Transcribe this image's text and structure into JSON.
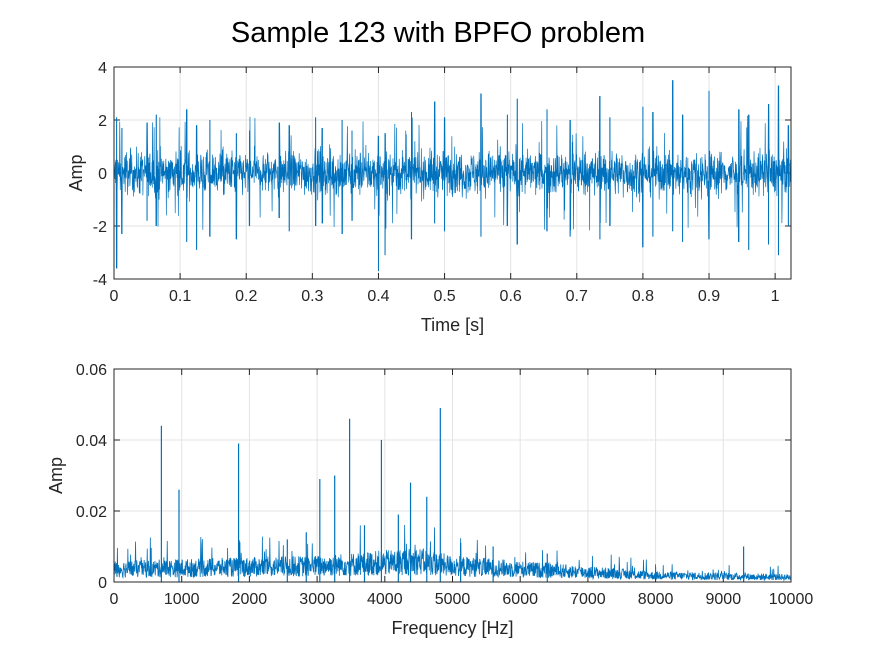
{
  "figure": {
    "title": "Sample 123 with BPFO problem"
  },
  "colors": {
    "series": "#0072BD",
    "grid": "#e3e3e3",
    "axes": "#262626",
    "background": "#ffffff"
  },
  "chart_data": [
    {
      "type": "line",
      "title": "Sample 123 with BPFO problem",
      "xlabel": "Time [s]",
      "ylabel": "Amp",
      "xlim": [
        0,
        1.024
      ],
      "ylim": [
        -4,
        4
      ],
      "xticks": [
        0,
        0.1,
        0.2,
        0.3,
        0.4,
        0.5,
        0.6,
        0.7,
        0.8,
        0.9,
        1
      ],
      "xtick_labels": [
        "0",
        "0.1",
        "0.2",
        "0.3",
        "0.4",
        "0.5",
        "0.6",
        "0.7",
        "0.8",
        "0.9",
        "1"
      ],
      "yticks": [
        -4,
        -2,
        0,
        2,
        4
      ],
      "ytick_labels": [
        "-4",
        "-2",
        "0",
        "2",
        "4"
      ],
      "grid": true,
      "series": [
        {
          "values_description_note": null,
          "noise_band": 0.75,
          "bursts": [
            [
              0.004,
              2.1,
              -3.6
            ],
            [
              0.012,
              1.7,
              -2.3
            ],
            [
              0.05,
              1.9,
              -1.8
            ],
            [
              0.064,
              2.2,
              -2.0
            ],
            [
              0.11,
              2.4,
              -2.6
            ],
            [
              0.125,
              1.8,
              -2.9
            ],
            [
              0.145,
              2.0,
              -2.4
            ],
            [
              0.185,
              1.5,
              -2.5
            ],
            [
              0.205,
              1.6,
              -2.0
            ],
            [
              0.25,
              1.9,
              -1.7
            ],
            [
              0.265,
              1.8,
              -2.2
            ],
            [
              0.305,
              2.1,
              -2.0
            ],
            [
              0.315,
              1.7,
              -1.9
            ],
            [
              0.345,
              2.0,
              -2.3
            ],
            [
              0.36,
              1.6,
              -1.8
            ],
            [
              0.4,
              1.4,
              -3.7
            ],
            [
              0.41,
              1.5,
              -3.1
            ],
            [
              0.45,
              2.3,
              -2.5
            ],
            [
              0.485,
              2.7,
              -1.9
            ],
            [
              0.5,
              2.1,
              -2.2
            ],
            [
              0.555,
              3.0,
              -2.4
            ],
            [
              0.595,
              2.2,
              -2.0
            ],
            [
              0.61,
              2.8,
              -2.7
            ],
            [
              0.655,
              2.4,
              -2.2
            ],
            [
              0.69,
              2.0,
              -2.4
            ],
            [
              0.735,
              2.9,
              -2.5
            ],
            [
              0.75,
              2.1,
              -2.0
            ],
            [
              0.8,
              2.5,
              -2.8
            ],
            [
              0.815,
              2.3,
              -2.4
            ],
            [
              0.845,
              3.5,
              -2.2
            ],
            [
              0.86,
              2.2,
              -2.6
            ],
            [
              0.9,
              3.1,
              -2.5
            ],
            [
              0.945,
              2.4,
              -2.6
            ],
            [
              0.96,
              2.2,
              -2.9
            ],
            [
              0.99,
              2.6,
              -2.7
            ],
            [
              1.005,
              3.3,
              -3.1
            ],
            [
              1.02,
              1.8,
              -2.0
            ]
          ]
        }
      ]
    },
    {
      "type": "line",
      "title": "",
      "xlabel": "Frequency [Hz]",
      "ylabel": "Amp",
      "xlim": [
        0,
        10000
      ],
      "ylim": [
        0,
        0.06
      ],
      "xticks": [
        0,
        1000,
        2000,
        3000,
        4000,
        5000,
        6000,
        7000,
        8000,
        9000,
        10000
      ],
      "xtick_labels": [
        "0",
        "1000",
        "2000",
        "3000",
        "4000",
        "5000",
        "6000",
        "7000",
        "8000",
        "9000",
        "10000"
      ],
      "yticks": [
        0,
        0.02,
        0.04,
        0.06
      ],
      "ytick_labels": [
        "0",
        "0.02",
        "0.04",
        "0.06"
      ],
      "grid": true,
      "series": [
        {
          "noise_floor": [
            [
              0,
              0.004
            ],
            [
              3000,
              0.005
            ],
            [
              4500,
              0.0065
            ],
            [
              5000,
              0.005
            ],
            [
              6500,
              0.0035
            ],
            [
              8000,
              0.002
            ],
            [
              10000,
              0.0015
            ]
          ],
          "peaks": [
            [
              700,
              0.044
            ],
            [
              960,
              0.026
            ],
            [
              1840,
              0.039
            ],
            [
              2560,
              0.012
            ],
            [
              2840,
              0.014
            ],
            [
              3040,
              0.029
            ],
            [
              3260,
              0.03
            ],
            [
              3480,
              0.046
            ],
            [
              3700,
              0.016
            ],
            [
              3950,
              0.04
            ],
            [
              4200,
              0.019
            ],
            [
              4380,
              0.028
            ],
            [
              4620,
              0.024
            ],
            [
              4820,
              0.049
            ],
            [
              5120,
              0.011
            ],
            [
              5600,
              0.01
            ],
            [
              6400,
              0.008
            ],
            [
              9300,
              0.01
            ]
          ]
        }
      ]
    }
  ]
}
